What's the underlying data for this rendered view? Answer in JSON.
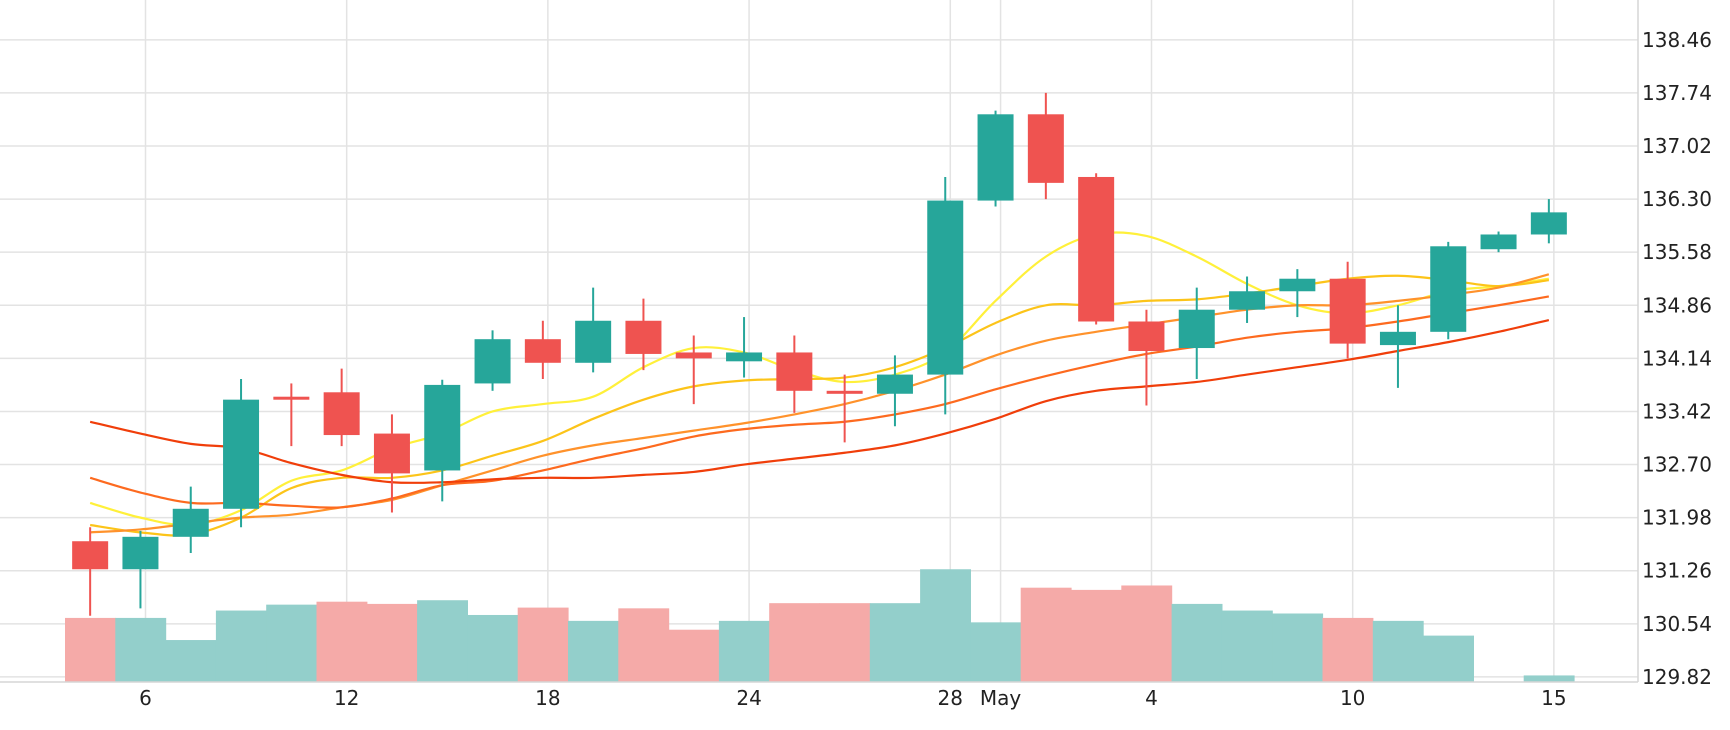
{
  "chart_data": {
    "type": "candlestick",
    "title": "",
    "xlabel": "",
    "ylabel": "",
    "ylim": [
      129.1,
      139.0
    ],
    "grid": true,
    "legend": "none",
    "y_ticks": [
      "138.46",
      "137.74",
      "137.02",
      "136.30",
      "135.58",
      "134.86",
      "134.14",
      "133.42",
      "132.70",
      "131.98",
      "131.26",
      "130.54",
      "129.82"
    ],
    "x_ticks": [
      {
        "label": "6",
        "index": 1.6
      },
      {
        "label": "12",
        "index": 5.6
      },
      {
        "label": "18",
        "index": 9.6
      },
      {
        "label": "24",
        "index": 13.6
      },
      {
        "label": "28",
        "index": 17.6
      },
      {
        "label": "May",
        "index": 18.6
      },
      {
        "label": "4",
        "index": 21.6
      },
      {
        "label": "10",
        "index": 25.6
      },
      {
        "label": "15",
        "index": 29.6
      }
    ],
    "up_color": "#26a69a",
    "down_color": "#ef5350",
    "volume_up_color": "#93cfcb",
    "volume_down_color": "#f5aaa8",
    "candles": [
      {
        "o": 131.66,
        "h": 131.85,
        "l": 130.65,
        "c": 131.28
      },
      {
        "o": 131.28,
        "h": 131.8,
        "l": 130.75,
        "c": 131.72
      },
      {
        "o": 131.72,
        "h": 132.4,
        "l": 131.5,
        "c": 132.1
      },
      {
        "o": 132.1,
        "h": 133.86,
        "l": 131.85,
        "c": 133.58
      },
      {
        "o": 133.62,
        "h": 133.8,
        "l": 132.95,
        "c": 133.58
      },
      {
        "o": 133.68,
        "h": 134.0,
        "l": 132.95,
        "c": 133.1
      },
      {
        "o": 133.12,
        "h": 133.38,
        "l": 132.05,
        "c": 132.58
      },
      {
        "o": 132.62,
        "h": 133.85,
        "l": 132.2,
        "c": 133.78
      },
      {
        "o": 133.8,
        "h": 134.52,
        "l": 133.7,
        "c": 134.4
      },
      {
        "o": 134.4,
        "h": 134.65,
        "l": 133.86,
        "c": 134.08
      },
      {
        "o": 134.08,
        "h": 135.1,
        "l": 133.95,
        "c": 134.65
      },
      {
        "o": 134.65,
        "h": 134.95,
        "l": 133.98,
        "c": 134.2
      },
      {
        "o": 134.22,
        "h": 134.45,
        "l": 133.52,
        "c": 134.14
      },
      {
        "o": 134.1,
        "h": 134.7,
        "l": 133.88,
        "c": 134.22
      },
      {
        "o": 134.22,
        "h": 134.45,
        "l": 133.4,
        "c": 133.7
      },
      {
        "o": 133.7,
        "h": 133.92,
        "l": 133.0,
        "c": 133.66
      },
      {
        "o": 133.66,
        "h": 134.18,
        "l": 133.22,
        "c": 133.92
      },
      {
        "o": 133.92,
        "h": 136.6,
        "l": 133.38,
        "c": 136.28
      },
      {
        "o": 136.28,
        "h": 137.5,
        "l": 136.2,
        "c": 137.45
      },
      {
        "o": 137.45,
        "h": 137.74,
        "l": 136.3,
        "c": 136.52
      },
      {
        "o": 136.6,
        "h": 136.65,
        "l": 134.6,
        "c": 134.64
      },
      {
        "o": 134.64,
        "h": 134.8,
        "l": 133.5,
        "c": 134.24
      },
      {
        "o": 134.28,
        "h": 135.1,
        "l": 133.86,
        "c": 134.8
      },
      {
        "o": 134.8,
        "h": 135.25,
        "l": 134.62,
        "c": 135.05
      },
      {
        "o": 135.05,
        "h": 135.35,
        "l": 134.7,
        "c": 135.22
      },
      {
        "o": 135.22,
        "h": 135.45,
        "l": 134.14,
        "c": 134.34
      },
      {
        "o": 134.32,
        "h": 134.86,
        "l": 133.74,
        "c": 134.5
      },
      {
        "o": 134.5,
        "h": 135.72,
        "l": 134.4,
        "c": 135.66
      },
      {
        "o": 135.62,
        "h": 135.86,
        "l": 135.58,
        "c": 135.82
      },
      {
        "o": 135.82,
        "h": 136.3,
        "l": 135.7,
        "c": 136.12
      }
    ],
    "volume": [
      {
        "v": 130.62,
        "dir": "down"
      },
      {
        "v": 130.62,
        "dir": "up"
      },
      {
        "v": 130.32,
        "dir": "up"
      },
      {
        "v": 130.72,
        "dir": "up"
      },
      {
        "v": 130.8,
        "dir": "up"
      },
      {
        "v": 130.84,
        "dir": "down"
      },
      {
        "v": 130.81,
        "dir": "down"
      },
      {
        "v": 130.86,
        "dir": "up"
      },
      {
        "v": 130.66,
        "dir": "up"
      },
      {
        "v": 130.76,
        "dir": "down"
      },
      {
        "v": 130.58,
        "dir": "up"
      },
      {
        "v": 130.75,
        "dir": "down"
      },
      {
        "v": 130.46,
        "dir": "down"
      },
      {
        "v": 130.58,
        "dir": "up"
      },
      {
        "v": 130.82,
        "dir": "down"
      },
      {
        "v": 130.82,
        "dir": "down"
      },
      {
        "v": 130.82,
        "dir": "up"
      },
      {
        "v": 131.28,
        "dir": "up"
      },
      {
        "v": 130.56,
        "dir": "up"
      },
      {
        "v": 131.03,
        "dir": "down"
      },
      {
        "v": 131.0,
        "dir": "down"
      },
      {
        "v": 131.06,
        "dir": "down"
      },
      {
        "v": 130.81,
        "dir": "up"
      },
      {
        "v": 130.72,
        "dir": "up"
      },
      {
        "v": 130.68,
        "dir": "up"
      },
      {
        "v": 130.62,
        "dir": "down"
      },
      {
        "v": 130.58,
        "dir": "up"
      },
      {
        "v": 130.38,
        "dir": "up"
      },
      {
        "v": 129.24,
        "dir": "up"
      },
      {
        "v": 129.84,
        "dir": "up"
      }
    ],
    "moving_averages": [
      {
        "color": "#fff03a",
        "values": [
          132.18,
          131.98,
          131.88,
          132.08,
          132.48,
          132.62,
          132.92,
          133.12,
          133.42,
          133.52,
          133.62,
          134.02,
          134.28,
          134.22,
          133.98,
          133.82,
          133.92,
          134.22,
          134.92,
          135.52,
          135.82,
          135.8,
          135.52,
          135.15,
          134.86,
          134.75,
          134.86,
          135.05,
          135.12,
          135.22
        ]
      },
      {
        "color": "#fcc419",
        "values": [
          131.88,
          131.78,
          131.75,
          131.98,
          132.38,
          132.52,
          132.52,
          132.62,
          132.82,
          133.02,
          133.32,
          133.58,
          133.76,
          133.84,
          133.86,
          133.88,
          134.02,
          134.28,
          134.62,
          134.86,
          134.86,
          134.92,
          134.94,
          135.02,
          135.12,
          135.22,
          135.26,
          135.2,
          135.12,
          135.2
        ]
      },
      {
        "color": "#ff922b",
        "values": [
          131.78,
          131.82,
          131.9,
          131.98,
          132.02,
          132.12,
          132.22,
          132.42,
          132.62,
          132.82,
          132.96,
          133.06,
          133.16,
          133.26,
          133.38,
          133.52,
          133.7,
          133.92,
          134.18,
          134.38,
          134.5,
          134.6,
          134.7,
          134.8,
          134.86,
          134.86,
          134.92,
          135.0,
          135.1,
          135.28
        ]
      },
      {
        "color": "#fd6a1f",
        "values": [
          132.52,
          132.32,
          132.18,
          132.18,
          132.14,
          132.12,
          132.24,
          132.42,
          132.48,
          132.62,
          132.78,
          132.92,
          133.08,
          133.18,
          133.24,
          133.28,
          133.38,
          133.52,
          133.72,
          133.9,
          134.06,
          134.2,
          134.3,
          134.42,
          134.5,
          134.55,
          134.64,
          134.75,
          134.86,
          134.98
        ]
      },
      {
        "color": "#f03e0a",
        "values": [
          133.28,
          133.12,
          132.98,
          132.92,
          132.72,
          132.56,
          132.46,
          132.46,
          132.5,
          132.52,
          132.52,
          132.56,
          132.6,
          132.7,
          132.78,
          132.86,
          132.96,
          133.12,
          133.32,
          133.56,
          133.7,
          133.76,
          133.82,
          133.92,
          134.02,
          134.12,
          134.24,
          134.36,
          134.5,
          134.66
        ]
      }
    ]
  }
}
